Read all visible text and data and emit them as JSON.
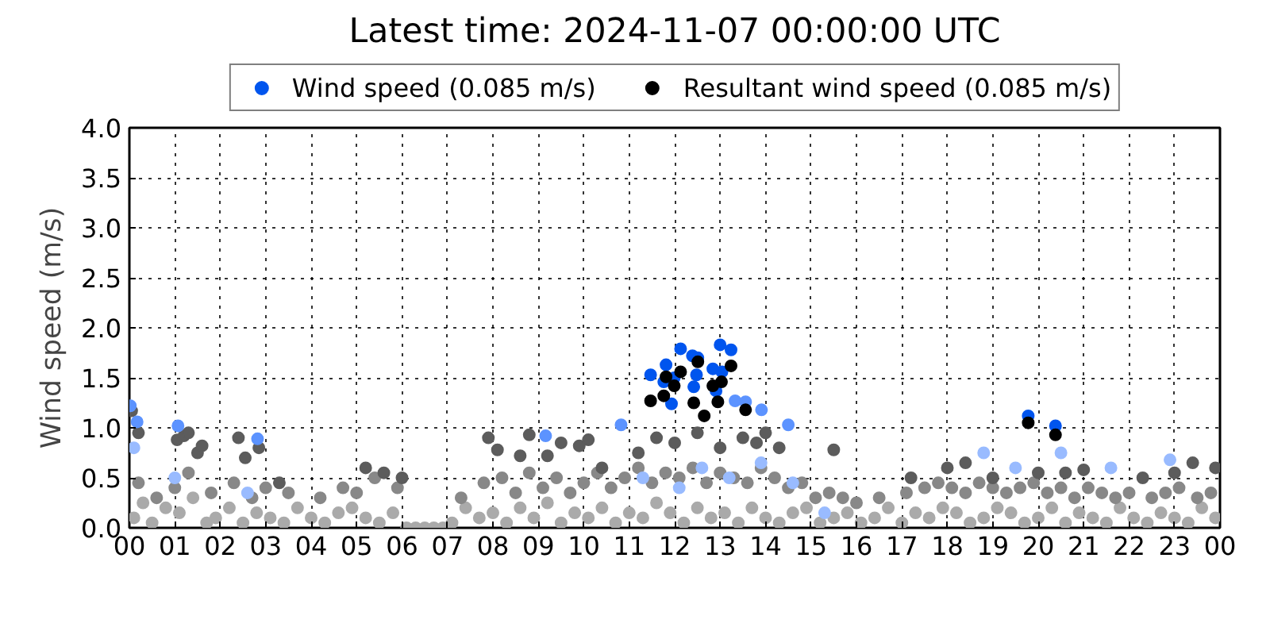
{
  "chart_data": {
    "type": "scatter",
    "title": "Latest time: 2024-11-07 00:00:00 UTC",
    "ylabel": "Wind speed (m/s)",
    "xlim": [
      0,
      24
    ],
    "ylim": [
      0,
      4.0
    ],
    "xticks": [
      {
        "value": 0,
        "label": "00"
      },
      {
        "value": 1,
        "label": "01"
      },
      {
        "value": 2,
        "label": "02"
      },
      {
        "value": 3,
        "label": "03"
      },
      {
        "value": 4,
        "label": "04"
      },
      {
        "value": 5,
        "label": "05"
      },
      {
        "value": 6,
        "label": "06"
      },
      {
        "value": 7,
        "label": "07"
      },
      {
        "value": 8,
        "label": "08"
      },
      {
        "value": 9,
        "label": "09"
      },
      {
        "value": 10,
        "label": "10"
      },
      {
        "value": 11,
        "label": "11"
      },
      {
        "value": 12,
        "label": "12"
      },
      {
        "value": 13,
        "label": "13"
      },
      {
        "value": 14,
        "label": "14"
      },
      {
        "value": 15,
        "label": "15"
      },
      {
        "value": 16,
        "label": "16"
      },
      {
        "value": 17,
        "label": "17"
      },
      {
        "value": 18,
        "label": "18"
      },
      {
        "value": 19,
        "label": "19"
      },
      {
        "value": 20,
        "label": "20"
      },
      {
        "value": 21,
        "label": "21"
      },
      {
        "value": 22,
        "label": "22"
      },
      {
        "value": 23,
        "label": "23"
      },
      {
        "value": 24,
        "label": "00"
      }
    ],
    "yticks": [
      {
        "value": 0,
        "label": "0.0"
      },
      {
        "value": 0.5,
        "label": "0.5"
      },
      {
        "value": 1,
        "label": "1.0"
      },
      {
        "value": 1.5,
        "label": "1.5"
      },
      {
        "value": 2,
        "label": "2.0"
      },
      {
        "value": 2.5,
        "label": "2.5"
      },
      {
        "value": 3,
        "label": "3.0"
      },
      {
        "value": 3.5,
        "label": "3.5"
      },
      {
        "value": 4,
        "label": "4.0"
      }
    ],
    "grid": true,
    "legend": "top",
    "marker": "circle",
    "series": [
      {
        "color": "#aaaaaa",
        "x": [
          0.1,
          0.3,
          0.5,
          0.8,
          1.1,
          1.4,
          1.7,
          1.9,
          2.2,
          2.5,
          2.8,
          3.1,
          3.4,
          3.7,
          4.0,
          4.3,
          4.6,
          4.9,
          5.2,
          5.5,
          5.8,
          6.1,
          6.3,
          6.5,
          6.7,
          6.9,
          7.1,
          7.4,
          7.7,
          8.0,
          8.3,
          8.6,
          8.9,
          9.2,
          9.5,
          9.8,
          10.1,
          10.4,
          10.7,
          11.0,
          11.3,
          11.6,
          11.9,
          12.2,
          12.5,
          12.8,
          13.1,
          13.4,
          13.7,
          14.0,
          14.3,
          14.6,
          14.9,
          15.2,
          15.5,
          15.8,
          16.1,
          16.4,
          16.7,
          17.0,
          17.3,
          17.6,
          17.9,
          18.2,
          18.5,
          18.8,
          19.1,
          19.4,
          19.7,
          20.0,
          20.3,
          20.6,
          20.9,
          21.2,
          21.5,
          21.8,
          22.1,
          22.4,
          22.7,
          23.0,
          23.3,
          23.6,
          23.9
        ],
        "values": [
          0.1,
          0.25,
          0.05,
          0.2,
          0.15,
          0.3,
          0.05,
          0.1,
          0.2,
          0.05,
          0.15,
          0.1,
          0.05,
          0.2,
          0.1,
          0.05,
          0.15,
          0.2,
          0.1,
          0.05,
          0.15,
          0.0,
          0.0,
          0.0,
          0.0,
          0.0,
          0.05,
          0.2,
          0.1,
          0.15,
          0.05,
          0.2,
          0.1,
          0.25,
          0.05,
          0.15,
          0.1,
          0.2,
          0.05,
          0.15,
          0.1,
          0.25,
          0.15,
          0.05,
          0.2,
          0.1,
          0.15,
          0.05,
          0.2,
          0.1,
          0.05,
          0.15,
          0.2,
          0.05,
          0.1,
          0.15,
          0.05,
          0.1,
          0.2,
          0.05,
          0.15,
          0.1,
          0.2,
          0.15,
          0.05,
          0.1,
          0.2,
          0.15,
          0.05,
          0.1,
          0.2,
          0.05,
          0.15,
          0.1,
          0.05,
          0.2,
          0.1,
          0.05,
          0.15,
          0.1,
          0.05,
          0.2,
          0.1
        ]
      },
      {
        "color": "#888888",
        "x": [
          0.2,
          0.6,
          1.0,
          1.3,
          1.8,
          2.3,
          2.7,
          3.0,
          3.5,
          4.2,
          4.7,
          5.0,
          5.4,
          5.9,
          7.3,
          7.8,
          8.2,
          8.5,
          8.8,
          9.1,
          9.4,
          9.7,
          10.0,
          10.3,
          10.6,
          10.9,
          11.2,
          11.5,
          11.8,
          12.1,
          12.4,
          12.7,
          13.0,
          13.3,
          13.6,
          13.9,
          14.2,
          14.5,
          14.8,
          15.1,
          15.4,
          15.7,
          16.0,
          16.5,
          17.1,
          17.5,
          17.8,
          18.1,
          18.4,
          18.7,
          19.0,
          19.3,
          19.6,
          19.9,
          20.2,
          20.5,
          20.8,
          21.1,
          21.4,
          21.7,
          22.0,
          22.5,
          22.8,
          23.1,
          23.5,
          23.8
        ],
        "values": [
          0.45,
          0.3,
          0.4,
          0.55,
          0.35,
          0.45,
          0.3,
          0.4,
          0.35,
          0.3,
          0.4,
          0.35,
          0.5,
          0.4,
          0.3,
          0.45,
          0.5,
          0.35,
          0.55,
          0.4,
          0.5,
          0.35,
          0.45,
          0.55,
          0.4,
          0.5,
          0.6,
          0.45,
          0.55,
          0.5,
          0.6,
          0.45,
          0.55,
          0.5,
          0.45,
          0.6,
          0.5,
          0.4,
          0.45,
          0.3,
          0.35,
          0.3,
          0.25,
          0.3,
          0.35,
          0.4,
          0.45,
          0.4,
          0.35,
          0.45,
          0.4,
          0.35,
          0.4,
          0.45,
          0.35,
          0.4,
          0.3,
          0.4,
          0.35,
          0.3,
          0.35,
          0.3,
          0.35,
          0.4,
          0.3,
          0.35
        ]
      },
      {
        "color": "#5c5c5c",
        "x": [
          0.05,
          0.2,
          1.05,
          1.2,
          1.3,
          1.5,
          1.6,
          2.4,
          2.55,
          2.85,
          3.3,
          5.2,
          5.6,
          6.0,
          7.9,
          8.1,
          8.6,
          8.8,
          9.2,
          9.5,
          9.9,
          10.1,
          10.4,
          11.2,
          11.6,
          12.0,
          12.5,
          13.0,
          13.5,
          13.8,
          14.0,
          14.3,
          15.5,
          17.2,
          18.0,
          18.4,
          19.0,
          20.0,
          20.6,
          21.0,
          22.3,
          23.0,
          23.4,
          23.9
        ],
        "values": [
          1.17,
          0.95,
          0.88,
          0.92,
          0.95,
          0.75,
          0.82,
          0.9,
          0.7,
          0.8,
          0.45,
          0.6,
          0.55,
          0.5,
          0.9,
          0.78,
          0.72,
          0.93,
          0.72,
          0.85,
          0.82,
          0.88,
          0.6,
          0.75,
          0.9,
          0.85,
          0.95,
          0.8,
          0.9,
          0.85,
          0.95,
          0.8,
          0.78,
          0.5,
          0.6,
          0.65,
          0.5,
          0.55,
          0.55,
          0.58,
          0.5,
          0.55,
          0.65,
          0.6
        ]
      },
      {
        "color": "#99bbff",
        "x": [
          0.1,
          1.0,
          2.6,
          11.3,
          12.1,
          12.6,
          13.2,
          13.9,
          14.6,
          15.3,
          18.8,
          19.5,
          20.5,
          21.6,
          22.9
        ],
        "values": [
          0.8,
          0.5,
          0.35,
          0.5,
          0.4,
          0.6,
          0.5,
          0.65,
          0.45,
          0.15,
          0.75,
          0.6,
          0.75,
          0.6,
          0.68
        ]
      },
      {
        "color": "#5c93ff",
        "x": [
          0.02,
          0.17,
          1.07,
          2.82,
          9.16,
          10.82,
          13.33,
          13.56,
          13.91,
          14.5
        ],
        "values": [
          1.22,
          1.06,
          1.02,
          0.89,
          0.92,
          1.03,
          1.27,
          1.26,
          1.18,
          1.03
        ]
      },
      {
        "name": "Wind speed (0.085 m/s)",
        "color": "#0055ee",
        "x": [
          11.47,
          11.81,
          11.76,
          12.13,
          11.99,
          12.39,
          12.51,
          12.48,
          12.84,
          13.0,
          13.24,
          13.04,
          12.42,
          11.93,
          12.91,
          19.78,
          20.38
        ],
        "values": [
          1.53,
          1.63,
          1.46,
          1.79,
          1.5,
          1.72,
          1.7,
          1.53,
          1.59,
          1.83,
          1.78,
          1.56,
          1.41,
          1.24,
          1.37,
          1.12,
          1.02
        ]
      },
      {
        "name": "Resultant wind speed (0.085 m/s)",
        "color": "#000000",
        "x": [
          11.81,
          12.13,
          12.51,
          13.24,
          11.47,
          11.76,
          11.99,
          12.84,
          13.03,
          12.42,
          12.95,
          12.65,
          13.56,
          19.78,
          20.38
        ],
        "values": [
          1.51,
          1.56,
          1.66,
          1.62,
          1.27,
          1.32,
          1.42,
          1.42,
          1.46,
          1.25,
          1.26,
          1.12,
          1.18,
          1.05,
          0.93
        ]
      }
    ]
  }
}
